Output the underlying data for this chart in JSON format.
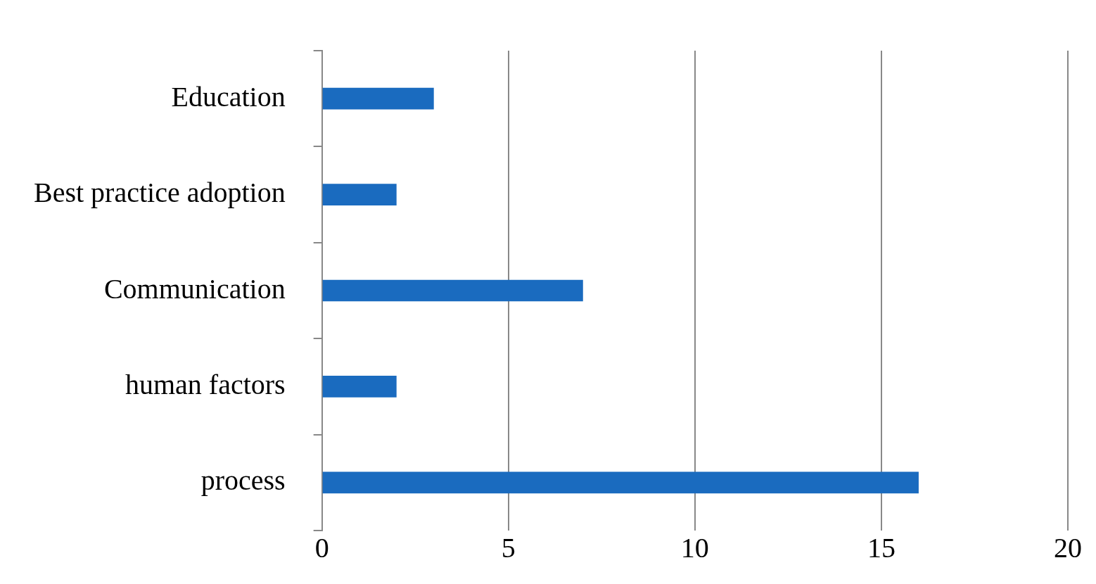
{
  "chart_data": {
    "type": "bar",
    "orientation": "horizontal",
    "categories": [
      "Education",
      "Best practice adoption",
      "Communication",
      "human factors",
      "process"
    ],
    "values": [
      3,
      2,
      7,
      2,
      16
    ],
    "color": "#1a6bbf",
    "xlim": [
      0,
      20
    ],
    "xticks": [
      0,
      5,
      10,
      15,
      20
    ],
    "grid": "x",
    "legend": false
  }
}
